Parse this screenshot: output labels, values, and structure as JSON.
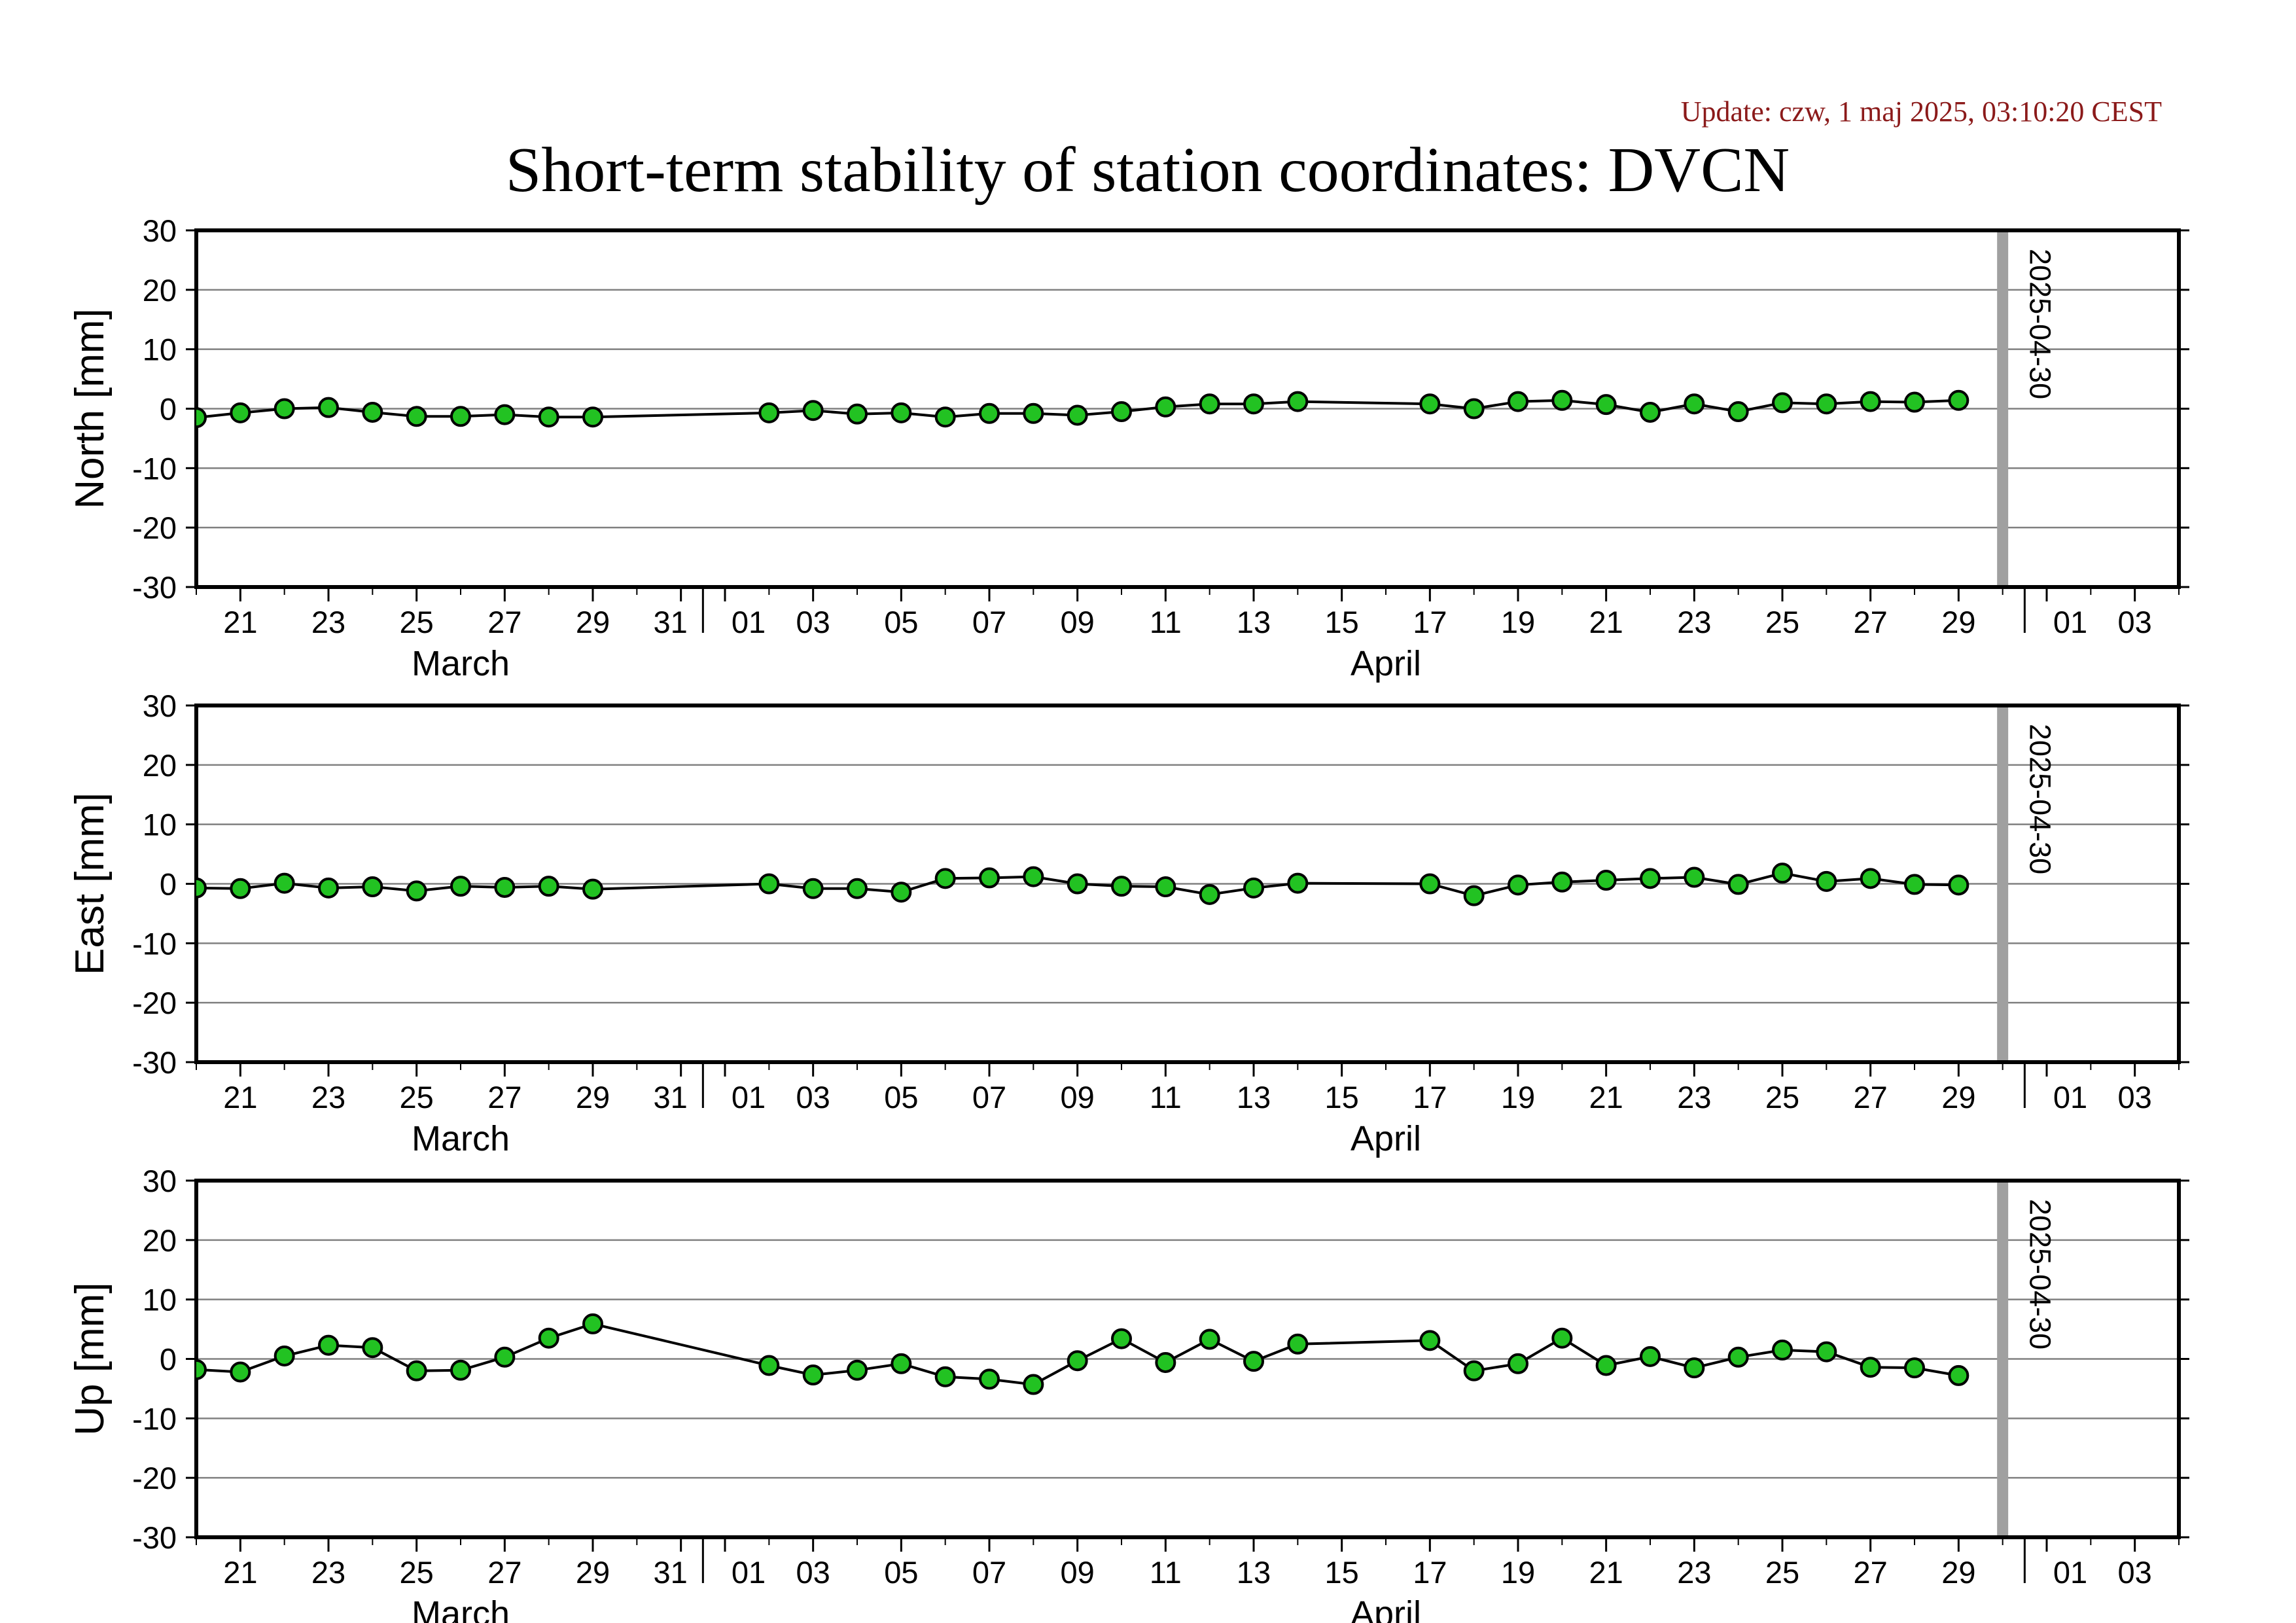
{
  "update_text": "Update: czw, 1 maj 2025, 03:10:20 CEST",
  "title": "Short-term stability of station coordinates: DVCN",
  "colors": {
    "marker_fill": "#22c222",
    "marker_stroke": "#000000",
    "line": "#000000",
    "grid": "#808080",
    "vline": "#a0a0a0",
    "update_text": "#8b1a1a"
  },
  "chart_data": [
    {
      "type": "line",
      "ylabel": "North [mm]",
      "ylim": [
        -30,
        30
      ],
      "yticks": [
        30,
        20,
        10,
        0,
        -10,
        -20,
        -30
      ],
      "xlim": [
        "2025-03-20",
        "2025-05-04"
      ],
      "x_tick_dates": [
        "2025-03-21",
        "2025-03-23",
        "2025-03-25",
        "2025-03-27",
        "2025-03-29",
        "2025-03-31",
        "2025-04-01",
        "2025-04-03",
        "2025-04-05",
        "2025-04-07",
        "2025-04-09",
        "2025-04-11",
        "2025-04-13",
        "2025-04-15",
        "2025-04-17",
        "2025-04-19",
        "2025-04-21",
        "2025-04-23",
        "2025-04-25",
        "2025-04-27",
        "2025-04-29",
        "2025-05-01",
        "2025-05-03"
      ],
      "x_tick_labels": [
        "21",
        "23",
        "25",
        "27",
        "29",
        "31",
        "01",
        "03",
        "05",
        "07",
        "09",
        "11",
        "13",
        "15",
        "17",
        "19",
        "21",
        "23",
        "25",
        "27",
        "29",
        "01",
        "03"
      ],
      "months": [
        {
          "label": "March",
          "date": "2025-03-26"
        },
        {
          "label": "April",
          "date": "2025-04-16"
        }
      ],
      "grid": true,
      "marker": {
        "date": "2025-04-30",
        "label": "2025-04-30"
      },
      "series": [
        {
          "x": [
            "2025-03-20",
            "2025-03-21",
            "2025-03-22",
            "2025-03-23",
            "2025-03-24",
            "2025-03-25",
            "2025-03-26",
            "2025-03-27",
            "2025-03-28",
            "2025-03-29",
            "2025-04-02",
            "2025-04-03",
            "2025-04-04",
            "2025-04-05",
            "2025-04-06",
            "2025-04-07",
            "2025-04-08",
            "2025-04-09",
            "2025-04-10",
            "2025-04-11",
            "2025-04-12",
            "2025-04-13",
            "2025-04-14",
            "2025-04-17",
            "2025-04-18",
            "2025-04-19",
            "2025-04-20",
            "2025-04-21",
            "2025-04-22",
            "2025-04-23",
            "2025-04-24",
            "2025-04-25",
            "2025-04-26",
            "2025-04-27",
            "2025-04-28",
            "2025-04-29"
          ],
          "y": [
            -1.5,
            -0.7,
            0.0,
            0.2,
            -0.6,
            -1.3,
            -1.3,
            -1.0,
            -1.4,
            -1.4,
            -0.7,
            -0.3,
            -0.9,
            -0.7,
            -1.4,
            -0.8,
            -0.8,
            -1.1,
            -0.5,
            0.3,
            0.8,
            0.8,
            1.2,
            0.8,
            0.0,
            1.2,
            1.4,
            0.7,
            -0.6,
            0.8,
            -0.5,
            1.0,
            0.8,
            1.2,
            1.1,
            1.4
          ]
        }
      ]
    },
    {
      "type": "line",
      "ylabel": "East [mm]",
      "ylim": [
        -30,
        30
      ],
      "yticks": [
        30,
        20,
        10,
        0,
        -10,
        -20,
        -30
      ],
      "xlim": [
        "2025-03-20",
        "2025-05-04"
      ],
      "x_tick_dates": [
        "2025-03-21",
        "2025-03-23",
        "2025-03-25",
        "2025-03-27",
        "2025-03-29",
        "2025-03-31",
        "2025-04-01",
        "2025-04-03",
        "2025-04-05",
        "2025-04-07",
        "2025-04-09",
        "2025-04-11",
        "2025-04-13",
        "2025-04-15",
        "2025-04-17",
        "2025-04-19",
        "2025-04-21",
        "2025-04-23",
        "2025-04-25",
        "2025-04-27",
        "2025-04-29",
        "2025-05-01",
        "2025-05-03"
      ],
      "x_tick_labels": [
        "21",
        "23",
        "25",
        "27",
        "29",
        "31",
        "01",
        "03",
        "05",
        "07",
        "09",
        "11",
        "13",
        "15",
        "17",
        "19",
        "21",
        "23",
        "25",
        "27",
        "29",
        "01",
        "03"
      ],
      "months": [
        {
          "label": "March",
          "date": "2025-03-26"
        },
        {
          "label": "April",
          "date": "2025-04-16"
        }
      ],
      "grid": true,
      "marker": {
        "date": "2025-04-30",
        "label": "2025-04-30"
      },
      "series": [
        {
          "x": [
            "2025-03-20",
            "2025-03-21",
            "2025-03-22",
            "2025-03-23",
            "2025-03-24",
            "2025-03-25",
            "2025-03-26",
            "2025-03-27",
            "2025-03-28",
            "2025-03-29",
            "2025-04-02",
            "2025-04-03",
            "2025-04-04",
            "2025-04-05",
            "2025-04-06",
            "2025-04-07",
            "2025-04-08",
            "2025-04-09",
            "2025-04-10",
            "2025-04-11",
            "2025-04-12",
            "2025-04-13",
            "2025-04-14",
            "2025-04-17",
            "2025-04-18",
            "2025-04-19",
            "2025-04-20",
            "2025-04-21",
            "2025-04-22",
            "2025-04-23",
            "2025-04-24",
            "2025-04-25",
            "2025-04-26",
            "2025-04-27",
            "2025-04-28",
            "2025-04-29"
          ],
          "y": [
            -0.7,
            -0.8,
            0.1,
            -0.7,
            -0.5,
            -1.2,
            -0.4,
            -0.6,
            -0.4,
            -0.9,
            0.0,
            -0.8,
            -0.8,
            -1.4,
            0.9,
            1.0,
            1.2,
            0.0,
            -0.4,
            -0.5,
            -1.8,
            -0.7,
            0.1,
            0.0,
            -2.0,
            -0.2,
            0.3,
            0.6,
            0.9,
            1.1,
            -0.1,
            1.8,
            0.4,
            0.9,
            -0.1,
            -0.2
          ]
        }
      ]
    },
    {
      "type": "line",
      "ylabel": "Up [mm]",
      "ylim": [
        -30,
        30
      ],
      "yticks": [
        30,
        20,
        10,
        0,
        -10,
        -20,
        -30
      ],
      "xlim": [
        "2025-03-20",
        "2025-05-04"
      ],
      "x_tick_dates": [
        "2025-03-21",
        "2025-03-23",
        "2025-03-25",
        "2025-03-27",
        "2025-03-29",
        "2025-03-31",
        "2025-04-01",
        "2025-04-03",
        "2025-04-05",
        "2025-04-07",
        "2025-04-09",
        "2025-04-11",
        "2025-04-13",
        "2025-04-15",
        "2025-04-17",
        "2025-04-19",
        "2025-04-21",
        "2025-04-23",
        "2025-04-25",
        "2025-04-27",
        "2025-04-29",
        "2025-05-01",
        "2025-05-03"
      ],
      "x_tick_labels": [
        "21",
        "23",
        "25",
        "27",
        "29",
        "31",
        "01",
        "03",
        "05",
        "07",
        "09",
        "11",
        "13",
        "15",
        "17",
        "19",
        "21",
        "23",
        "25",
        "27",
        "29",
        "01",
        "03"
      ],
      "months": [
        {
          "label": "March",
          "date": "2025-03-26"
        },
        {
          "label": "April",
          "date": "2025-04-16"
        }
      ],
      "grid": true,
      "marker": {
        "date": "2025-04-30",
        "label": "2025-04-30"
      },
      "series": [
        {
          "x": [
            "2025-03-20",
            "2025-03-21",
            "2025-03-22",
            "2025-03-23",
            "2025-03-24",
            "2025-03-25",
            "2025-03-26",
            "2025-03-27",
            "2025-03-28",
            "2025-03-29",
            "2025-04-02",
            "2025-04-03",
            "2025-04-04",
            "2025-04-05",
            "2025-04-06",
            "2025-04-07",
            "2025-04-08",
            "2025-04-09",
            "2025-04-10",
            "2025-04-11",
            "2025-04-12",
            "2025-04-13",
            "2025-04-14",
            "2025-04-17",
            "2025-04-18",
            "2025-04-19",
            "2025-04-20",
            "2025-04-21",
            "2025-04-22",
            "2025-04-23",
            "2025-04-24",
            "2025-04-25",
            "2025-04-26",
            "2025-04-27",
            "2025-04-28",
            "2025-04-29"
          ],
          "y": [
            -1.8,
            -2.2,
            0.5,
            2.3,
            1.9,
            -2.0,
            -1.9,
            0.3,
            3.5,
            5.9,
            -1.1,
            -2.7,
            -1.9,
            -0.8,
            -3.0,
            -3.4,
            -4.3,
            -0.3,
            3.4,
            -0.6,
            3.3,
            -0.4,
            2.5,
            3.1,
            -2.0,
            -0.8,
            3.5,
            -1.1,
            0.4,
            -1.5,
            0.3,
            1.5,
            1.2,
            -1.4,
            -1.5,
            -2.8
          ]
        }
      ]
    }
  ]
}
